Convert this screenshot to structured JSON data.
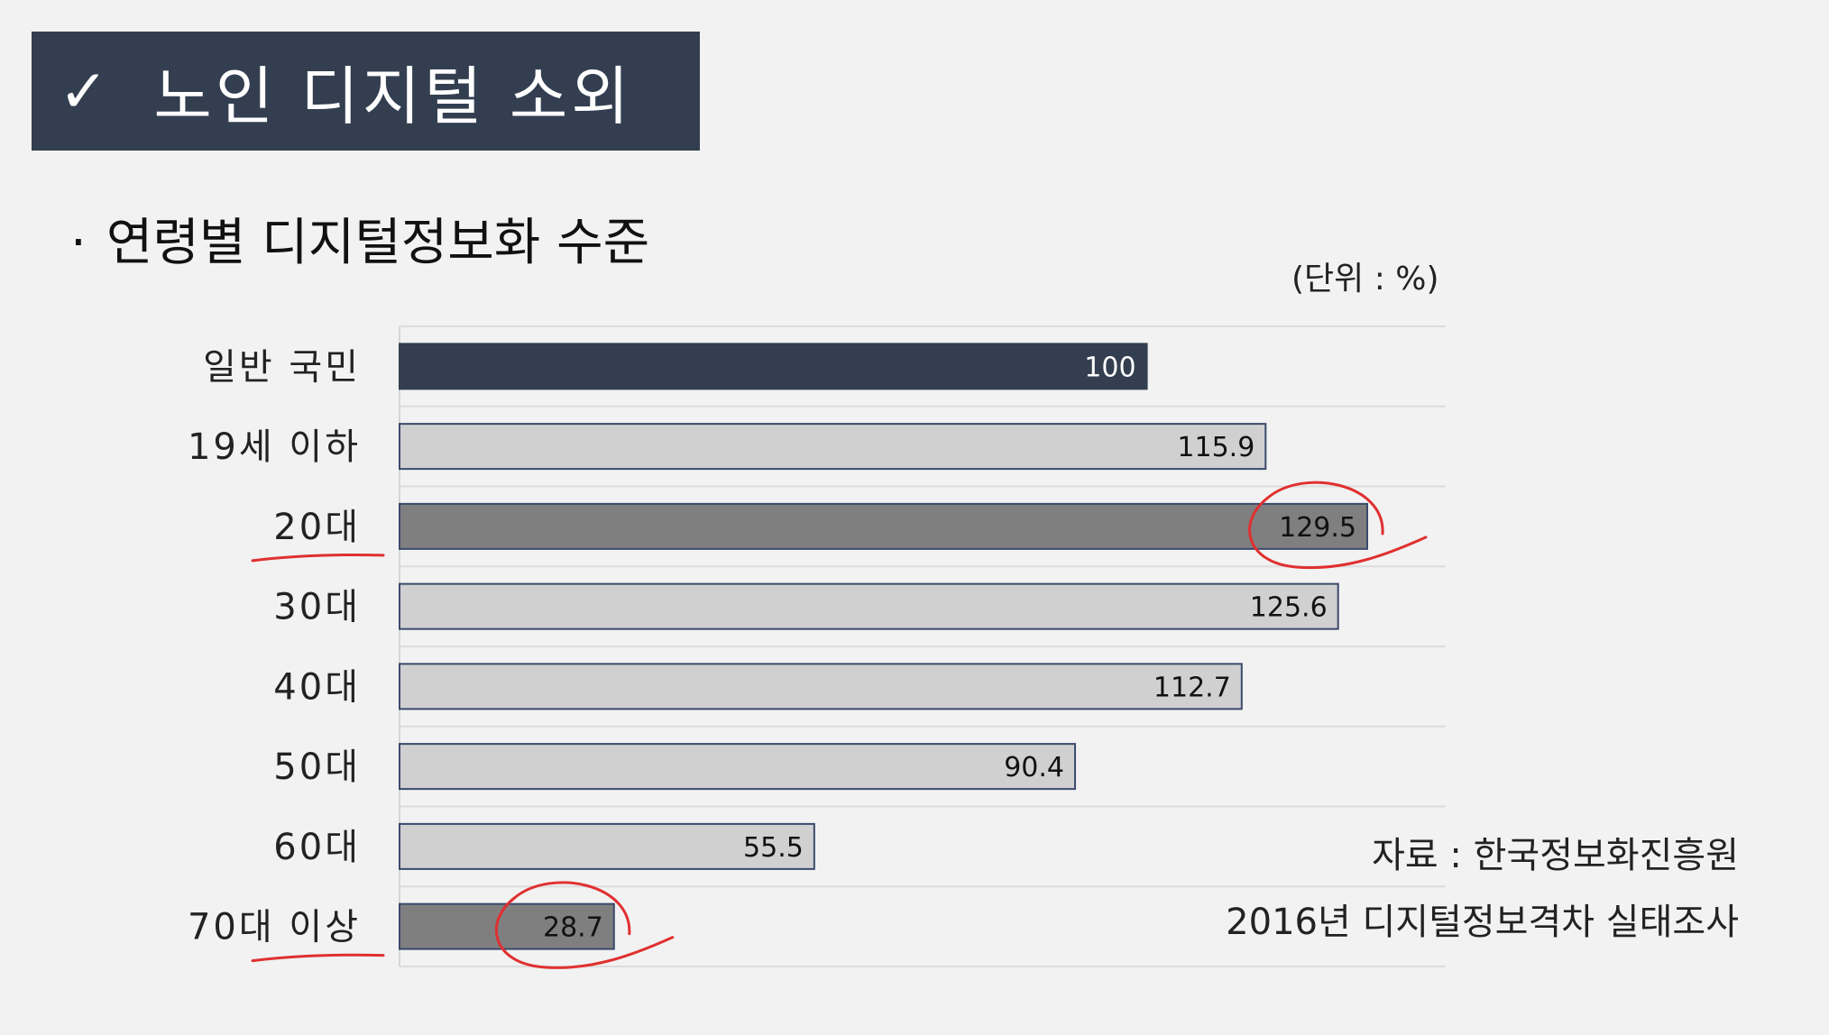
{
  "slide": {
    "title_check": "✓",
    "title": "노인 디지털 소외",
    "subtitle_bullet": "·",
    "subtitle": "연령별 디지털정보화 수준",
    "unit": "(단위 : %)",
    "source_line1": "자료 : 한국정보화진흥원",
    "source_line2": "2016년 디지털정보격차 실태조사"
  },
  "colors": {
    "navy": "#333f50",
    "dark_gray": "#7f7f7f",
    "light_gray": "#d0d0d0",
    "bar_border": "#3a4a6b",
    "annotation_red": "#e03030"
  },
  "chart_data": {
    "type": "bar",
    "orientation": "horizontal",
    "categories": [
      "일반 국민",
      "19세 이하",
      "20대",
      "30대",
      "40대",
      "50대",
      "60대",
      "70대 이상"
    ],
    "values": [
      100,
      115.9,
      129.5,
      125.6,
      112.7,
      90.4,
      55.5,
      28.7
    ],
    "value_labels": [
      "100",
      "115.9",
      "129.5",
      "125.6",
      "112.7",
      "90.4",
      "55.5",
      "28.7"
    ],
    "bar_styles": [
      "navy",
      "light_gray",
      "dark_gray",
      "light_gray",
      "light_gray",
      "light_gray",
      "light_gray",
      "dark_gray"
    ],
    "highlighted": [
      "20대",
      "70대 이상"
    ],
    "xlim": [
      0,
      140
    ],
    "grid": true,
    "legend": "none",
    "title": "",
    "xlabel": "",
    "ylabel": ""
  }
}
